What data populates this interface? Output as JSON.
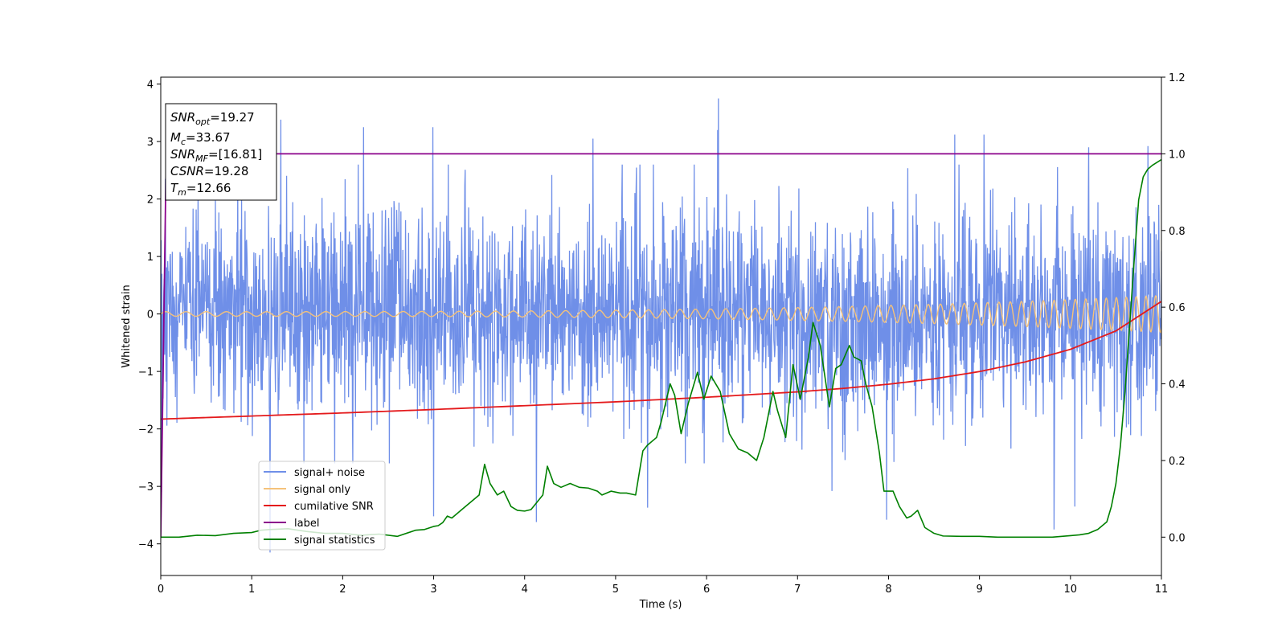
{
  "chart_data": {
    "type": "line",
    "xlabel": "Time (s)",
    "ylabel": "Whitened strain",
    "xlim": [
      0,
      11
    ],
    "ylim_left": [
      -4.55,
      4.12
    ],
    "ylim_right": [
      -0.1,
      1.2
    ],
    "x_ticks": [
      "0",
      "1",
      "2",
      "3",
      "4",
      "5",
      "6",
      "7",
      "8",
      "9",
      "10",
      "11"
    ],
    "y_ticks_left": [
      "4",
      "3",
      "2",
      "1",
      "0",
      "−1",
      "−2",
      "−3",
      "−4"
    ],
    "y_ticks_right": [
      "1.2",
      "1.0",
      "0.8",
      "0.6",
      "0.4",
      "0.2",
      "0.0"
    ],
    "info_box": {
      "lines": [
        {
          "main": "SNR",
          "sub": "opt",
          "rest": "=19.27"
        },
        {
          "main": "M",
          "sub": "c",
          "rest": "=33.67"
        },
        {
          "main": "SNR",
          "sub": "MF",
          "rest": "=[16.81]"
        },
        {
          "main": "CSNR",
          "sub": "",
          "rest": "=19.28"
        },
        {
          "main": "T",
          "sub": "m",
          "rest": "=12.66"
        }
      ]
    },
    "legend": {
      "position": "lower-left",
      "entries": [
        {
          "label": "signal+ noise",
          "color": "#6f8fe8"
        },
        {
          "label": "signal only",
          "color": "#f5c27a"
        },
        {
          "label": "cumilative SNR",
          "color": "#e41a1c"
        },
        {
          "label": "label",
          "color": "#8b008b"
        },
        {
          "label": "signal statistics",
          "color": "#008000"
        }
      ]
    },
    "series": [
      {
        "name": "signal+ noise",
        "axis": "left",
        "color": "#6f8fe8",
        "noise_std": 0.9,
        "spikes": [
          {
            "x": 1.32,
            "y": 3.38
          },
          {
            "x": 2.23,
            "y": 3.25
          },
          {
            "x": 2.99,
            "y": 3.25
          },
          {
            "x": 4.75,
            "y": 3.05
          },
          {
            "x": 6.13,
            "y": 3.75
          },
          {
            "x": 6.12,
            "y": 3.2
          },
          {
            "x": 8.73,
            "y": 3.12
          },
          {
            "x": 9.05,
            "y": 3.12
          },
          {
            "x": 10.85,
            "y": 2.92
          },
          {
            "x": 10.2,
            "y": 2.9
          },
          {
            "x": 1.2,
            "y": -4.15
          },
          {
            "x": 3.0,
            "y": -3.52
          },
          {
            "x": 5.35,
            "y": -3.37
          },
          {
            "x": 7.38,
            "y": -3.08
          },
          {
            "x": 7.98,
            "y": -3.58
          },
          {
            "x": 9.82,
            "y": -3.75
          },
          {
            "x": 10.05,
            "y": -3.35
          },
          {
            "x": 4.13,
            "y": -3.62
          },
          {
            "x": 0.01,
            "y": -3.1
          },
          {
            "x": 0.05,
            "y": 2.35
          }
        ]
      },
      {
        "name": "signal only",
        "axis": "left",
        "color": "#f5c27a",
        "amplitude_start": 0.04,
        "amplitude_end": 0.32,
        "freq_start_hz": 4.5,
        "freq_end_hz": 9.5
      },
      {
        "name": "cumilative SNR",
        "axis": "right",
        "color": "#e41a1c",
        "x": [
          0,
          1,
          2,
          3,
          4,
          5,
          6,
          7,
          7.5,
          8,
          8.5,
          9,
          9.5,
          10,
          10.5,
          11
        ],
        "y": [
          0.308,
          0.316,
          0.324,
          0.333,
          0.343,
          0.353,
          0.365,
          0.379,
          0.388,
          0.399,
          0.413,
          0.432,
          0.457,
          0.49,
          0.538,
          0.615
        ]
      },
      {
        "name": "label",
        "axis": "right",
        "color": "#8b008b",
        "x": [
          0,
          0.06,
          11
        ],
        "y": [
          0.0,
          1.0,
          1.0
        ]
      },
      {
        "name": "signal statistics",
        "axis": "right",
        "color": "#008000",
        "x": [
          0,
          0.2,
          0.4,
          0.6,
          0.8,
          1.0,
          1.1,
          1.2,
          1.4,
          1.6,
          1.8,
          2.0,
          2.2,
          2.4,
          2.6,
          2.8,
          2.9,
          3.0,
          3.05,
          3.1,
          3.15,
          3.2,
          3.3,
          3.4,
          3.5,
          3.56,
          3.62,
          3.7,
          3.77,
          3.85,
          3.92,
          4.0,
          4.07,
          4.2,
          4.25,
          4.32,
          4.4,
          4.5,
          4.6,
          4.7,
          4.8,
          4.85,
          4.95,
          5.05,
          5.12,
          5.22,
          5.3,
          5.35,
          5.45,
          5.5,
          5.6,
          5.65,
          5.72,
          5.8,
          5.9,
          5.97,
          6.05,
          6.15,
          6.25,
          6.35,
          6.45,
          6.55,
          6.63,
          6.73,
          6.78,
          6.87,
          6.95,
          7.03,
          7.12,
          7.17,
          7.25,
          7.35,
          7.42,
          7.48,
          7.57,
          7.62,
          7.7,
          7.75,
          7.82,
          7.9,
          7.95,
          8.05,
          8.12,
          8.2,
          8.25,
          8.32,
          8.4,
          8.5,
          8.6,
          8.8,
          9.0,
          9.2,
          9.4,
          9.6,
          9.8,
          10.0,
          10.1,
          10.2,
          10.3,
          10.4,
          10.45,
          10.5,
          10.55,
          10.6,
          10.65,
          10.7,
          10.75,
          10.8,
          10.85,
          10.9,
          11.0
        ],
        "y": [
          0.0,
          0.0,
          0.005,
          0.004,
          0.01,
          0.012,
          0.018,
          0.02,
          0.022,
          0.015,
          0.01,
          0.01,
          0.005,
          0.008,
          0.002,
          0.018,
          0.02,
          0.028,
          0.03,
          0.038,
          0.055,
          0.05,
          0.07,
          0.09,
          0.11,
          0.19,
          0.14,
          0.11,
          0.12,
          0.08,
          0.07,
          0.068,
          0.072,
          0.11,
          0.185,
          0.14,
          0.13,
          0.14,
          0.13,
          0.128,
          0.12,
          0.11,
          0.12,
          0.115,
          0.115,
          0.11,
          0.225,
          0.24,
          0.26,
          0.3,
          0.4,
          0.37,
          0.27,
          0.35,
          0.43,
          0.36,
          0.42,
          0.38,
          0.27,
          0.23,
          0.22,
          0.2,
          0.26,
          0.38,
          0.33,
          0.26,
          0.45,
          0.36,
          0.47,
          0.56,
          0.5,
          0.34,
          0.44,
          0.45,
          0.5,
          0.47,
          0.46,
          0.4,
          0.34,
          0.22,
          0.12,
          0.12,
          0.08,
          0.05,
          0.055,
          0.07,
          0.025,
          0.01,
          0.003,
          0.002,
          0.002,
          0.0,
          0.0,
          0.0,
          0.0,
          0.004,
          0.006,
          0.01,
          0.02,
          0.04,
          0.08,
          0.14,
          0.24,
          0.38,
          0.55,
          0.72,
          0.88,
          0.94,
          0.96,
          0.97,
          0.985
        ]
      }
    ]
  }
}
